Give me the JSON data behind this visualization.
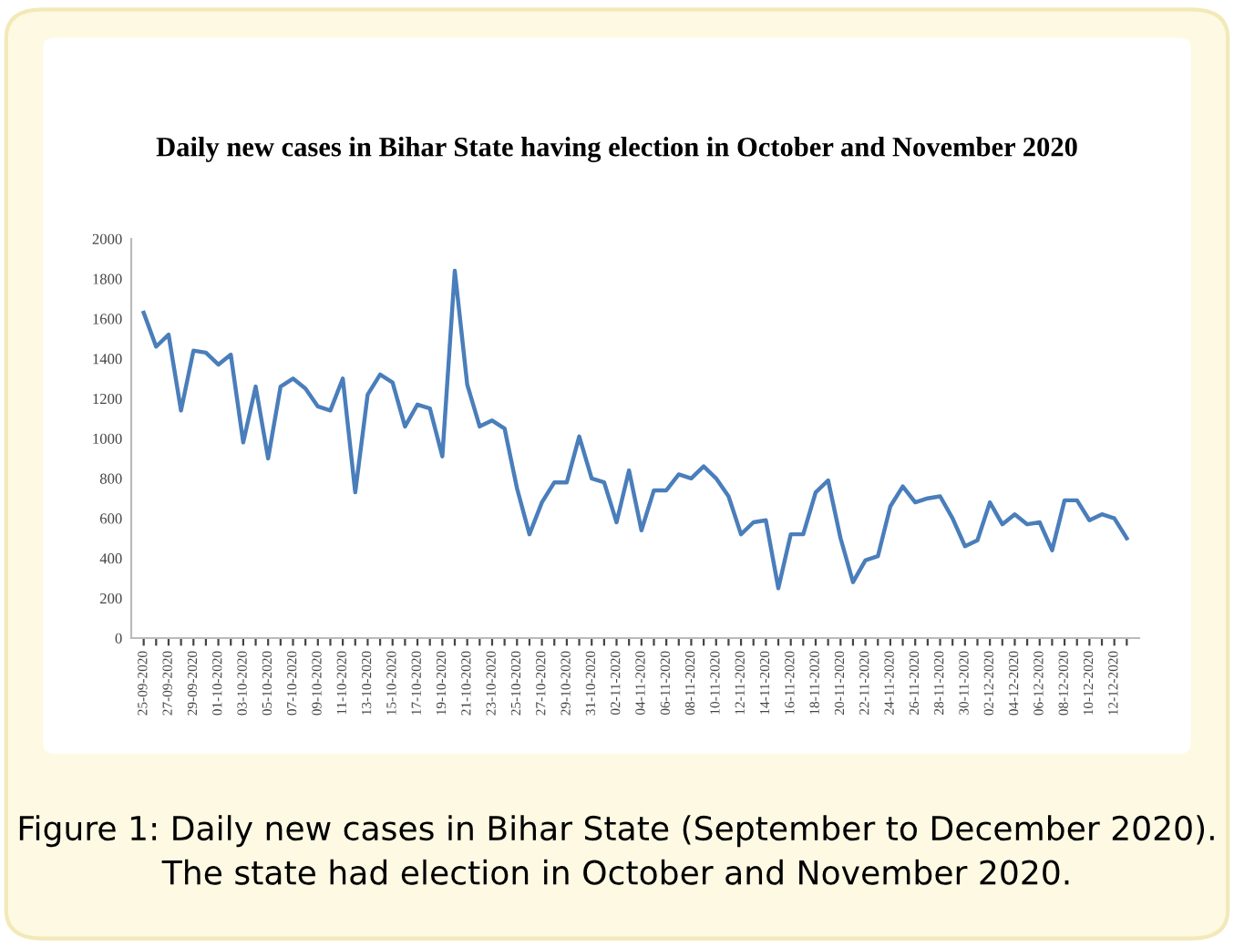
{
  "chart_data": {
    "type": "line",
    "title": "Daily new cases in Bihar State having election in October and November 2020",
    "categories": [
      "25-09-2020",
      null,
      "27-09-2020",
      null,
      "29-09-2020",
      null,
      "01-10-2020",
      null,
      "03-10-2020",
      null,
      "05-10-2020",
      null,
      "07-10-2020",
      null,
      "09-10-2020",
      null,
      "11-10-2020",
      null,
      "13-10-2020",
      null,
      "15-10-2020",
      null,
      "17-10-2020",
      null,
      "19-10-2020",
      null,
      "21-10-2020",
      null,
      "23-10-2020",
      null,
      "25-10-2020",
      null,
      "27-10-2020",
      null,
      "29-10-2020",
      null,
      "31-10-2020",
      null,
      "02-11-2020",
      null,
      "04-11-2020",
      null,
      "06-11-2020",
      null,
      "08-11-2020",
      null,
      "10-11-2020",
      null,
      "12-11-2020",
      null,
      "14-11-2020",
      null,
      "16-11-2020",
      null,
      "18-11-2020",
      null,
      "20-11-2020",
      null,
      "22-11-2020",
      null,
      "24-11-2020",
      null,
      "26-11-2020",
      null,
      "28-11-2020",
      null,
      "30-11-2020",
      null,
      "02-12-2020",
      null,
      "04-12-2020",
      null,
      "06-12-2020",
      null,
      "08-12-2020",
      null,
      "10-12-2020",
      null,
      "12-12-2020",
      null
    ],
    "series": [
      {
        "color": "#4a7ebb",
        "values": [
          1630,
          1460,
          1520,
          1140,
          1440,
          1430,
          1370,
          1420,
          980,
          1260,
          900,
          1260,
          1300,
          1250,
          1160,
          1140,
          1300,
          730,
          1220,
          1320,
          1280,
          1060,
          1170,
          1150,
          910,
          1840,
          1270,
          1060,
          1090,
          1050,
          750,
          520,
          680,
          780,
          780,
          1010,
          800,
          780,
          580,
          840,
          540,
          740,
          740,
          820,
          800,
          860,
          800,
          710,
          520,
          580,
          590,
          250,
          520,
          520,
          730,
          790,
          500,
          280,
          390,
          410,
          660,
          760,
          680,
          700,
          710,
          600,
          460,
          490,
          680,
          570,
          620,
          570,
          580,
          440,
          690,
          690,
          590,
          620,
          600,
          500
        ]
      }
    ],
    "ylim": [
      0,
      2000
    ],
    "yticks": [
      0,
      200,
      400,
      600,
      800,
      1000,
      1200,
      1400,
      1600,
      1800,
      2000
    ],
    "grid": false,
    "marker": "none",
    "line_style": "solid",
    "annotations": [
      "Figure 1: Daily new cases in Bihar State (September to December 2020). The state had election in October and November 2020."
    ]
  }
}
